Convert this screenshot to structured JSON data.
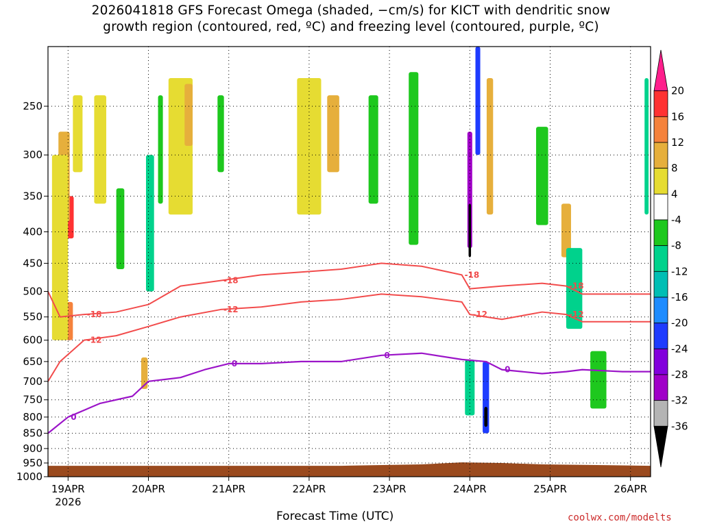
{
  "title_line1": "2026041818 GFS Forecast Omega (shaded, −cm/s) for KICT with dendritic snow",
  "title_line2": "growth region (contoured, red, ºC) and freezing level (contoured, purple, ºC)",
  "credit": "coolwx.com/modelts",
  "chart_data": {
    "type": "heatmap",
    "title": "2026041818 GFS Forecast Omega (shaded, −cm/s) for KICT with dendritic snow growth region (contoured, red, ºC) and freezing level (contoured, purple, ºC)",
    "xlabel": "Forecast Time (UTC)",
    "ylabel": "",
    "x_ticks": [
      "19APR",
      "20APR",
      "21APR",
      "22APR",
      "23APR",
      "24APR",
      "25APR",
      "26APR"
    ],
    "x_tick_values": [
      0.6,
      1.6,
      2.6,
      3.6,
      4.6,
      5.6,
      6.6,
      7.6
    ],
    "x_year_label": "2026",
    "xlim": [
      0.35,
      7.85
    ],
    "y_ticks": [
      250,
      300,
      350,
      400,
      450,
      500,
      550,
      600,
      650,
      700,
      750,
      800,
      850,
      900,
      950,
      1000
    ],
    "ylim": [
      1000,
      200
    ],
    "y_scale": "log",
    "grid": true,
    "colorbar": {
      "labels": [
        20,
        16,
        12,
        8,
        4,
        -4,
        -8,
        -12,
        -16,
        -20,
        -24,
        -28,
        -32,
        -36
      ],
      "colors": [
        "#ff1e8c",
        "#ff3232",
        "#f5823c",
        "#e6af3c",
        "#e6dc32",
        "#ffffff",
        "#1ec81e",
        "#00d28c",
        "#00beb4",
        "#1e8cff",
        "#1e3cff",
        "#8200dc",
        "#a000c8",
        "#b4b4b4",
        "#000000"
      ]
    },
    "omega_cells": [
      {
        "x": 0.62,
        "p": 380,
        "w": 0.1,
        "h": 60,
        "v": 18
      },
      {
        "x": 0.55,
        "p": 330,
        "w": 0.14,
        "h": 110,
        "v": 10
      },
      {
        "x": 0.6,
        "p": 560,
        "w": 0.12,
        "h": 80,
        "v": 14
      },
      {
        "x": 0.5,
        "p": 450,
        "w": 0.2,
        "h": 300,
        "v": 6
      },
      {
        "x": 0.72,
        "p": 280,
        "w": 0.12,
        "h": 80,
        "v": 6
      },
      {
        "x": 1.0,
        "p": 300,
        "w": 0.15,
        "h": 120,
        "v": 6
      },
      {
        "x": 1.25,
        "p": 400,
        "w": 0.1,
        "h": 120,
        "v": -6
      },
      {
        "x": 1.62,
        "p": 400,
        "w": 0.05,
        "h": 120,
        "v": -20
      },
      {
        "x": 1.62,
        "p": 400,
        "w": 0.1,
        "h": 200,
        "v": -10
      },
      {
        "x": 1.75,
        "p": 300,
        "w": 0.06,
        "h": 120,
        "v": -6
      },
      {
        "x": 1.55,
        "p": 680,
        "w": 0.08,
        "h": 80,
        "v": 8
      },
      {
        "x": 2.0,
        "p": 300,
        "w": 0.3,
        "h": 150,
        "v": 6
      },
      {
        "x": 2.1,
        "p": 260,
        "w": 0.1,
        "h": 60,
        "v": 8
      },
      {
        "x": 2.5,
        "p": 280,
        "w": 0.08,
        "h": 80,
        "v": -6
      },
      {
        "x": 3.6,
        "p": 300,
        "w": 0.3,
        "h": 150,
        "v": 6
      },
      {
        "x": 3.9,
        "p": 280,
        "w": 0.15,
        "h": 80,
        "v": 8
      },
      {
        "x": 4.4,
        "p": 300,
        "w": 0.12,
        "h": 120,
        "v": -6
      },
      {
        "x": 4.9,
        "p": 300,
        "w": 0.05,
        "h": 120,
        "v": -12
      },
      {
        "x": 4.9,
        "p": 320,
        "w": 0.12,
        "h": 200,
        "v": -6
      },
      {
        "x": 5.6,
        "p": 350,
        "w": 0.06,
        "h": 150,
        "v": -28
      },
      {
        "x": 5.6,
        "p": 400,
        "w": 0.03,
        "h": 80,
        "v": -36
      },
      {
        "x": 5.7,
        "p": 250,
        "w": 0.06,
        "h": 100,
        "v": -20
      },
      {
        "x": 5.85,
        "p": 300,
        "w": 0.08,
        "h": 150,
        "v": 8
      },
      {
        "x": 5.6,
        "p": 720,
        "w": 0.12,
        "h": 150,
        "v": -10
      },
      {
        "x": 5.8,
        "p": 750,
        "w": 0.08,
        "h": 200,
        "v": -20
      },
      {
        "x": 5.8,
        "p": 800,
        "w": 0.04,
        "h": 60,
        "v": -36
      },
      {
        "x": 6.5,
        "p": 330,
        "w": 0.15,
        "h": 120,
        "v": -6
      },
      {
        "x": 6.8,
        "p": 400,
        "w": 0.12,
        "h": 80,
        "v": 8
      },
      {
        "x": 6.9,
        "p": 500,
        "w": 0.2,
        "h": 150,
        "v": -8
      },
      {
        "x": 7.2,
        "p": 700,
        "w": 0.2,
        "h": 150,
        "v": -6
      },
      {
        "x": 7.8,
        "p": 300,
        "w": 0.05,
        "h": 150,
        "v": -8
      }
    ],
    "dgz_minus12": {
      "label": "-12",
      "points": [
        [
          0.35,
          700
        ],
        [
          0.5,
          650
        ],
        [
          0.8,
          600
        ],
        [
          1.2,
          590
        ],
        [
          1.6,
          570
        ],
        [
          2.0,
          550
        ],
        [
          2.5,
          535
        ],
        [
          3.0,
          530
        ],
        [
          3.5,
          520
        ],
        [
          4.0,
          515
        ],
        [
          4.5,
          505
        ],
        [
          5.0,
          510
        ],
        [
          5.5,
          520
        ],
        [
          5.6,
          545
        ],
        [
          6.0,
          555
        ],
        [
          6.5,
          540
        ],
        [
          6.8,
          545
        ],
        [
          7.0,
          560
        ],
        [
          7.5,
          560
        ],
        [
          7.85,
          560
        ]
      ]
    },
    "dgz_minus18": {
      "label": "-18",
      "points": [
        [
          0.35,
          500
        ],
        [
          0.5,
          550
        ],
        [
          0.8,
          545
        ],
        [
          1.2,
          540
        ],
        [
          1.6,
          525
        ],
        [
          2.0,
          490
        ],
        [
          2.5,
          480
        ],
        [
          3.0,
          470
        ],
        [
          3.5,
          465
        ],
        [
          4.0,
          460
        ],
        [
          4.5,
          450
        ],
        [
          5.0,
          455
        ],
        [
          5.5,
          470
        ],
        [
          5.6,
          495
        ],
        [
          6.0,
          490
        ],
        [
          6.5,
          485
        ],
        [
          6.8,
          490
        ],
        [
          7.0,
          505
        ],
        [
          7.5,
          505
        ],
        [
          7.85,
          505
        ]
      ]
    },
    "freezing_level": {
      "label": "0",
      "points": [
        [
          0.35,
          850
        ],
        [
          0.6,
          800
        ],
        [
          1.0,
          760
        ],
        [
          1.4,
          740
        ],
        [
          1.6,
          700
        ],
        [
          2.0,
          690
        ],
        [
          2.3,
          670
        ],
        [
          2.6,
          655
        ],
        [
          3.0,
          655
        ],
        [
          3.5,
          650
        ],
        [
          4.0,
          650
        ],
        [
          4.5,
          635
        ],
        [
          5.0,
          630
        ],
        [
          5.5,
          645
        ],
        [
          5.8,
          650
        ],
        [
          6.0,
          670
        ],
        [
          6.5,
          680
        ],
        [
          6.8,
          675
        ],
        [
          7.0,
          670
        ],
        [
          7.5,
          675
        ],
        [
          7.85,
          675
        ]
      ]
    },
    "ground": [
      [
        0.35,
        960
      ],
      [
        4.0,
        960
      ],
      [
        5.0,
        955
      ],
      [
        5.5,
        948
      ],
      [
        6.0,
        950
      ],
      [
        6.5,
        955
      ],
      [
        7.85,
        960
      ]
    ]
  }
}
